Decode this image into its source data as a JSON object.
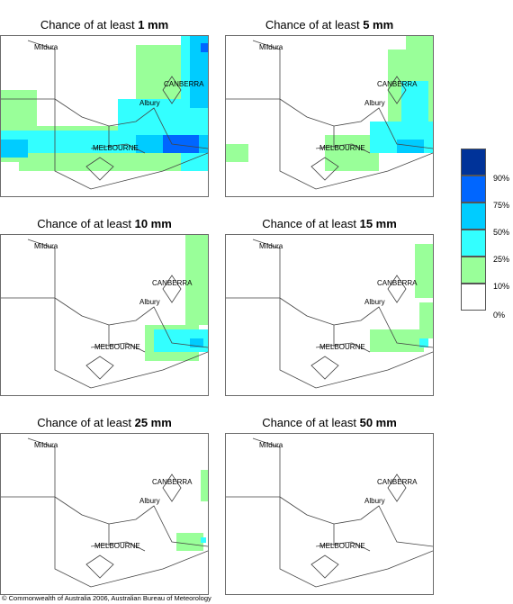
{
  "panels": [
    {
      "title_prefix": "Chance of at least ",
      "threshold": "1 mm"
    },
    {
      "title_prefix": "Chance of at least ",
      "threshold": "5 mm"
    },
    {
      "title_prefix": "Chance of at least ",
      "threshold": "10 mm"
    },
    {
      "title_prefix": "Chance of at least ",
      "threshold": "15 mm"
    },
    {
      "title_prefix": "Chance of at least ",
      "threshold": "25 mm"
    },
    {
      "title_prefix": "Chance of at least ",
      "threshold": "50 mm"
    }
  ],
  "cities": {
    "mildura": "Mildura",
    "canberra": "CANBERRA",
    "albury": "Albury",
    "melbourne": "MELBOURNE"
  },
  "legend": {
    "labels": [
      "90%",
      "75%",
      "50%",
      "25%",
      "10%",
      "0%"
    ],
    "colors": [
      "#003399",
      "#0066ff",
      "#00ccff",
      "#33ffff",
      "#99ff99",
      "#ffffff"
    ]
  },
  "colors": {
    "c10": "#99ff99",
    "c25": "#33ffff",
    "c50": "#00ccff",
    "c75": "#0066ff",
    "c90": "#003399"
  },
  "copyright": "© Commonwealth of Australia 2006, Australian Bureau of Meteorology"
}
